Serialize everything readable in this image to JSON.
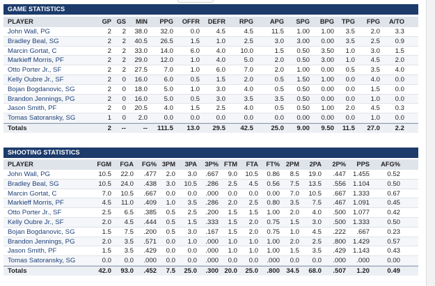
{
  "game": {
    "title": "GAME STATISTICS",
    "headers": [
      "PLAYER",
      "GP",
      "GS",
      "MIN",
      "PPG",
      "OFFR",
      "DEFR",
      "RPG",
      "APG",
      "SPG",
      "BPG",
      "TPG",
      "FPG",
      "A/TO"
    ],
    "rows": [
      [
        "John Wall, PG",
        "2",
        "2",
        "38.0",
        "32.0",
        "0.0",
        "4.5",
        "4.5",
        "11.5",
        "1.00",
        "1.00",
        "3.5",
        "2.0",
        "3.3"
      ],
      [
        "Bradley Beal, SG",
        "2",
        "2",
        "40.5",
        "26.5",
        "1.5",
        "1.0",
        "2.5",
        "3.0",
        "3.00",
        "0.00",
        "3.5",
        "2.5",
        "0.9"
      ],
      [
        "Marcin Gortat, C",
        "2",
        "2",
        "33.0",
        "14.0",
        "6.0",
        "4.0",
        "10.0",
        "1.5",
        "0.50",
        "3.50",
        "1.0",
        "3.0",
        "1.5"
      ],
      [
        "Markieff Morris, PF",
        "2",
        "2",
        "29.0",
        "12.0",
        "1.0",
        "4.0",
        "5.0",
        "2.0",
        "0.50",
        "3.00",
        "1.0",
        "4.5",
        "2.0"
      ],
      [
        "Otto Porter Jr., SF",
        "2",
        "2",
        "27.5",
        "7.0",
        "1.0",
        "6.0",
        "7.0",
        "2.0",
        "1.00",
        "0.00",
        "0.5",
        "3.5",
        "4.0"
      ],
      [
        "Kelly Oubre Jr., SF",
        "2",
        "0",
        "16.0",
        "6.0",
        "0.5",
        "1.5",
        "2.0",
        "0.5",
        "1.50",
        "1.00",
        "0.0",
        "4.0",
        "0.0"
      ],
      [
        "Bojan Bogdanovic, SG",
        "2",
        "0",
        "18.0",
        "5.0",
        "1.0",
        "3.0",
        "4.0",
        "0.5",
        "0.50",
        "0.00",
        "0.0",
        "1.5",
        "0.0"
      ],
      [
        "Brandon Jennings, PG",
        "2",
        "0",
        "16.0",
        "5.0",
        "0.5",
        "3.0",
        "3.5",
        "3.5",
        "0.50",
        "0.00",
        "0.0",
        "1.0",
        "0.0"
      ],
      [
        "Jason Smith, PF",
        "2",
        "0",
        "20.5",
        "4.0",
        "1.5",
        "2.5",
        "4.0",
        "0.5",
        "0.50",
        "1.00",
        "2.0",
        "4.5",
        "0.3"
      ],
      [
        "Tomas Satoransky, SG",
        "1",
        "0",
        "2.0",
        "0.0",
        "0.0",
        "0.0",
        "0.0",
        "0.0",
        "0.00",
        "0.00",
        "0.0",
        "1.0",
        "0.0"
      ]
    ],
    "totals": [
      "Totals",
      "2",
      "--",
      "--",
      "111.5",
      "13.0",
      "29.5",
      "42.5",
      "25.0",
      "9.00",
      "9.50",
      "11.5",
      "27.0",
      "2.2"
    ]
  },
  "shooting": {
    "title": "SHOOTING STATISTICS",
    "headers": [
      "PLAYER",
      "FGM",
      "FGA",
      "FG%",
      "3PM",
      "3PA",
      "3P%",
      "FTM",
      "FTA",
      "FT%",
      "2PM",
      "2PA",
      "2P%",
      "PPS",
      "AFG%"
    ],
    "rows": [
      [
        "John Wall, PG",
        "10.5",
        "22.0",
        ".477",
        "2.0",
        "3.0",
        ".667",
        "9.0",
        "10.5",
        "0.86",
        "8.5",
        "19.0",
        ".447",
        "1.455",
        "0.52"
      ],
      [
        "Bradley Beal, SG",
        "10.5",
        "24.0",
        ".438",
        "3.0",
        "10.5",
        ".286",
        "2.5",
        "4.5",
        "0.56",
        "7.5",
        "13.5",
        ".556",
        "1.104",
        "0.50"
      ],
      [
        "Marcin Gortat, C",
        "7.0",
        "10.5",
        ".667",
        "0.0",
        "0.0",
        ".000",
        "0.0",
        "0.0",
        "0.00",
        "7.0",
        "10.5",
        ".667",
        "1.333",
        "0.67"
      ],
      [
        "Markieff Morris, PF",
        "4.5",
        "11.0",
        ".409",
        "1.0",
        "3.5",
        ".286",
        "2.0",
        "2.5",
        "0.80",
        "3.5",
        "7.5",
        ".467",
        "1.091",
        "0.45"
      ],
      [
        "Otto Porter Jr., SF",
        "2.5",
        "6.5",
        ".385",
        "0.5",
        "2.5",
        ".200",
        "1.5",
        "1.5",
        "1.00",
        "2.0",
        "4.0",
        ".500",
        "1.077",
        "0.42"
      ],
      [
        "Kelly Oubre Jr., SF",
        "2.0",
        "4.5",
        ".444",
        "0.5",
        "1.5",
        ".333",
        "1.5",
        "2.0",
        "0.75",
        "1.5",
        "3.0",
        ".500",
        "1.333",
        "0.50"
      ],
      [
        "Bojan Bogdanovic, SG",
        "1.5",
        "7.5",
        ".200",
        "0.5",
        "3.0",
        ".167",
        "1.5",
        "2.0",
        "0.75",
        "1.0",
        "4.5",
        ".222",
        ".667",
        "0.23"
      ],
      [
        "Brandon Jennings, PG",
        "2.0",
        "3.5",
        ".571",
        "0.0",
        "1.0",
        ".000",
        "1.0",
        "1.0",
        "1.00",
        "2.0",
        "2.5",
        ".800",
        "1.429",
        "0.57"
      ],
      [
        "Jason Smith, PF",
        "1.5",
        "3.5",
        ".429",
        "0.0",
        "0.0",
        ".000",
        "1.0",
        "1.0",
        "1.00",
        "1.5",
        "3.5",
        ".429",
        "1.143",
        "0.43"
      ],
      [
        "Tomas Satoransky, SG",
        "0.0",
        "0.0",
        ".000",
        "0.0",
        "0.0",
        ".000",
        "0.0",
        "0.0",
        ".000",
        "0.0",
        "0.0",
        ".000",
        ".000",
        "0.00"
      ]
    ],
    "totals": [
      "Totals",
      "42.0",
      "93.0",
      ".452",
      "7.5",
      "25.0",
      ".300",
      "20.0",
      "25.0",
      ".800",
      "34.5",
      "68.0",
      ".507",
      "1.20",
      "0.49"
    ]
  }
}
